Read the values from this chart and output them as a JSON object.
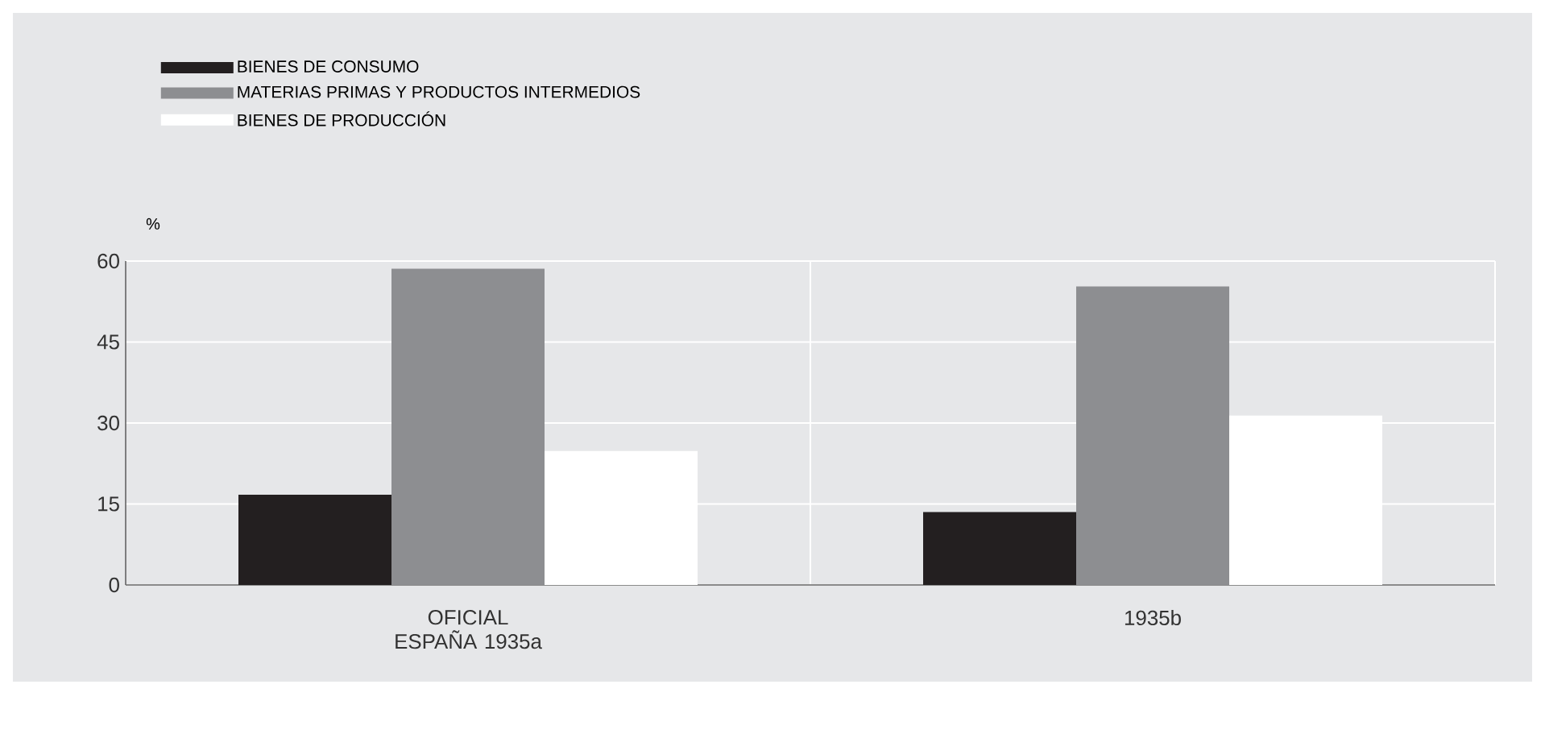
{
  "chart_data": {
    "type": "bar",
    "ylabel": "%",
    "categories": [
      "OFICIAL ESPAÑA 1935a",
      "1935b"
    ],
    "series": [
      {
        "name": "BIENES DE CONSUMO",
        "color": "#231f20",
        "values": [
          16.7,
          13.5
        ]
      },
      {
        "name": "MATERIAS PRIMAS Y PRODUCTOS INTERMEDIOS",
        "color": "#8d8e91",
        "values": [
          58.6,
          55.3
        ]
      },
      {
        "name": "BIENES DE PRODUCCIÓN",
        "color": "#ffffff",
        "values": [
          24.8,
          31.4
        ]
      }
    ],
    "ylim": [
      0,
      60
    ],
    "yticks": [
      0,
      15,
      30,
      45,
      60
    ],
    "grid": true,
    "legend": "top left"
  }
}
